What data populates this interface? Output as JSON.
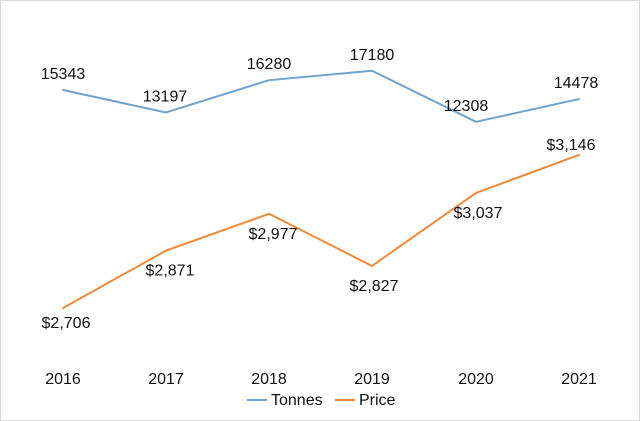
{
  "chart_data": {
    "type": "line",
    "categories": [
      "2016",
      "2017",
      "2018",
      "2019",
      "2020",
      "2021"
    ],
    "series": [
      {
        "name": "Tonnes",
        "values": [
          15343,
          13197,
          16280,
          17180,
          12308,
          14478
        ],
        "labels": [
          "15343",
          "13197",
          "16280",
          "17180",
          "12308",
          "14478"
        ],
        "color": "#6ea3cf"
      },
      {
        "name": "Price",
        "values": [
          2706,
          2871,
          2977,
          2827,
          3037,
          3146
        ],
        "labels": [
          "$2,706",
          "$2,871",
          "$2,977",
          "$2,827",
          "$3,037",
          "$3,146"
        ],
        "color": "#ef8a3a"
      }
    ],
    "legend": "bottom",
    "grid": false
  }
}
